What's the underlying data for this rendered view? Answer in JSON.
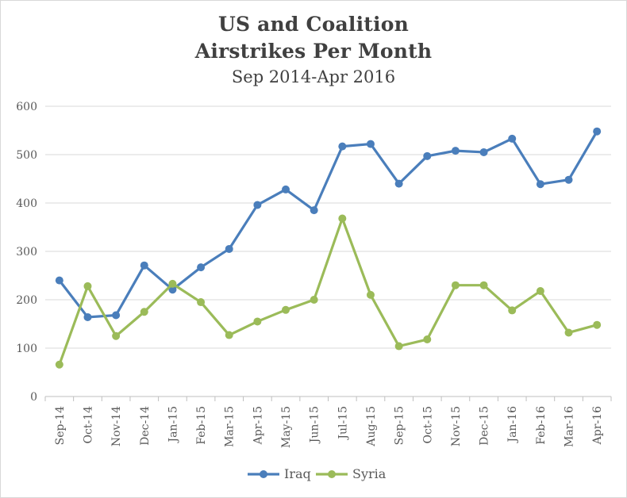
{
  "chart_data": {
    "type": "line",
    "title": "US and Coalition",
    "title_line2": "Airstrikes Per Month",
    "subtitle": "Sep 2014-Apr 2016",
    "categories": [
      "Sep-14",
      "Oct-14",
      "Nov-14",
      "Dec-14",
      "Jan-15",
      "Feb-15",
      "Mar-15",
      "Apr-15",
      "May-15",
      "Jun-15",
      "Jul-15",
      "Aug-15",
      "Sep-15",
      "Oct-15",
      "Nov-15",
      "Dec-15",
      "Jan-16",
      "Feb-16",
      "Mar-16",
      "Apr-16"
    ],
    "series": [
      {
        "name": "Iraq",
        "color": "#4a7ebb",
        "values": [
          240,
          164,
          168,
          271,
          221,
          267,
          305,
          396,
          428,
          385,
          517,
          522,
          440,
          497,
          508,
          505,
          533,
          439,
          448,
          548
        ]
      },
      {
        "name": "Syria",
        "color": "#9bbb59",
        "values": [
          66,
          228,
          125,
          175,
          233,
          195,
          127,
          155,
          179,
          200,
          368,
          210,
          104,
          118,
          230,
          230,
          178,
          218,
          132,
          148
        ]
      }
    ],
    "ylim": [
      0,
      600
    ],
    "yticks": [
      0,
      100,
      200,
      300,
      400,
      500,
      600
    ],
    "grid": true,
    "legend": "bottom"
  }
}
